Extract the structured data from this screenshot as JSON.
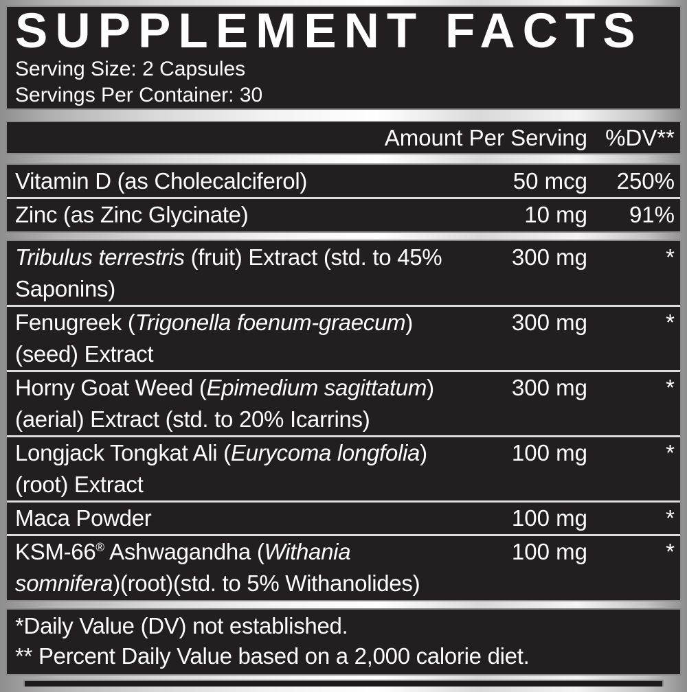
{
  "title": "SUPPLEMENT FACTS",
  "serving": {
    "size": "Serving Size: 2 Capsules",
    "per_container": "Servings Per Container: 30"
  },
  "header": {
    "amount_label": "Amount Per Serving",
    "dv_label": "%DV**"
  },
  "groups": [
    {
      "rows": [
        {
          "lines": [
            [
              {
                "text": "Vitamin D (as Cholecalciferol)"
              }
            ]
          ],
          "amount": "50 mcg",
          "dv": "250%"
        },
        {
          "lines": [
            [
              {
                "text": "Zinc (as Zinc Glycinate)"
              }
            ]
          ],
          "amount": "10 mg",
          "dv": "91%"
        }
      ]
    },
    {
      "rows": [
        {
          "lines": [
            [
              {
                "text": "Tribulus terrestris",
                "italic": true
              },
              {
                "text": " (fruit) Extract (std. to 45%"
              }
            ],
            [
              {
                "text": "Saponins)"
              }
            ]
          ],
          "amount": "300 mg",
          "dv": "*"
        },
        {
          "lines": [
            [
              {
                "text": "Fenugreek ("
              },
              {
                "text": "Trigonella foenum-graecum",
                "italic": true
              },
              {
                "text": ")"
              }
            ],
            [
              {
                "text": "(seed) Extract"
              }
            ]
          ],
          "amount": "300 mg",
          "dv": "*"
        },
        {
          "lines": [
            [
              {
                "text": "Horny Goat Weed ("
              },
              {
                "text": "Epimedium sagittatum",
                "italic": true
              },
              {
                "text": ")"
              }
            ],
            [
              {
                "text": "(aerial) Extract (std. to 20% Icarrins)"
              }
            ]
          ],
          "amount": "300 mg",
          "dv": "*"
        },
        {
          "lines": [
            [
              {
                "text": "Longjack Tongkat Ali ("
              },
              {
                "text": "Eurycoma longfolia",
                "italic": true
              },
              {
                "text": ")"
              }
            ],
            [
              {
                "text": "(root) Extract"
              }
            ]
          ],
          "amount": "100 mg",
          "dv": "*"
        },
        {
          "lines": [
            [
              {
                "text": "Maca Powder"
              }
            ]
          ],
          "amount": "100 mg",
          "dv": "*"
        },
        {
          "lines": [
            [
              {
                "text": "KSM-66"
              },
              {
                "text": "®",
                "sup": true
              },
              {
                "text": " Ashwagandha ("
              },
              {
                "text": "Withania",
                "italic": true
              }
            ],
            [
              {
                "text": "somnifera",
                "italic": true
              },
              {
                "text": ")(root)(std. to 5% Withanolides)"
              }
            ]
          ],
          "amount": "100 mg",
          "dv": "*"
        }
      ]
    }
  ],
  "footnotes": [
    "*Daily Value (DV) not established.",
    "** Percent Daily Value based on a 2,000 calorie diet."
  ],
  "colors": {
    "panel_background": "#231f20",
    "panel_border": "#8b898c",
    "row_separator": "#dddddf",
    "text": "#fefefe",
    "background_silver_dark": "#8e8e8e",
    "background_silver_light": "#ffffff"
  }
}
